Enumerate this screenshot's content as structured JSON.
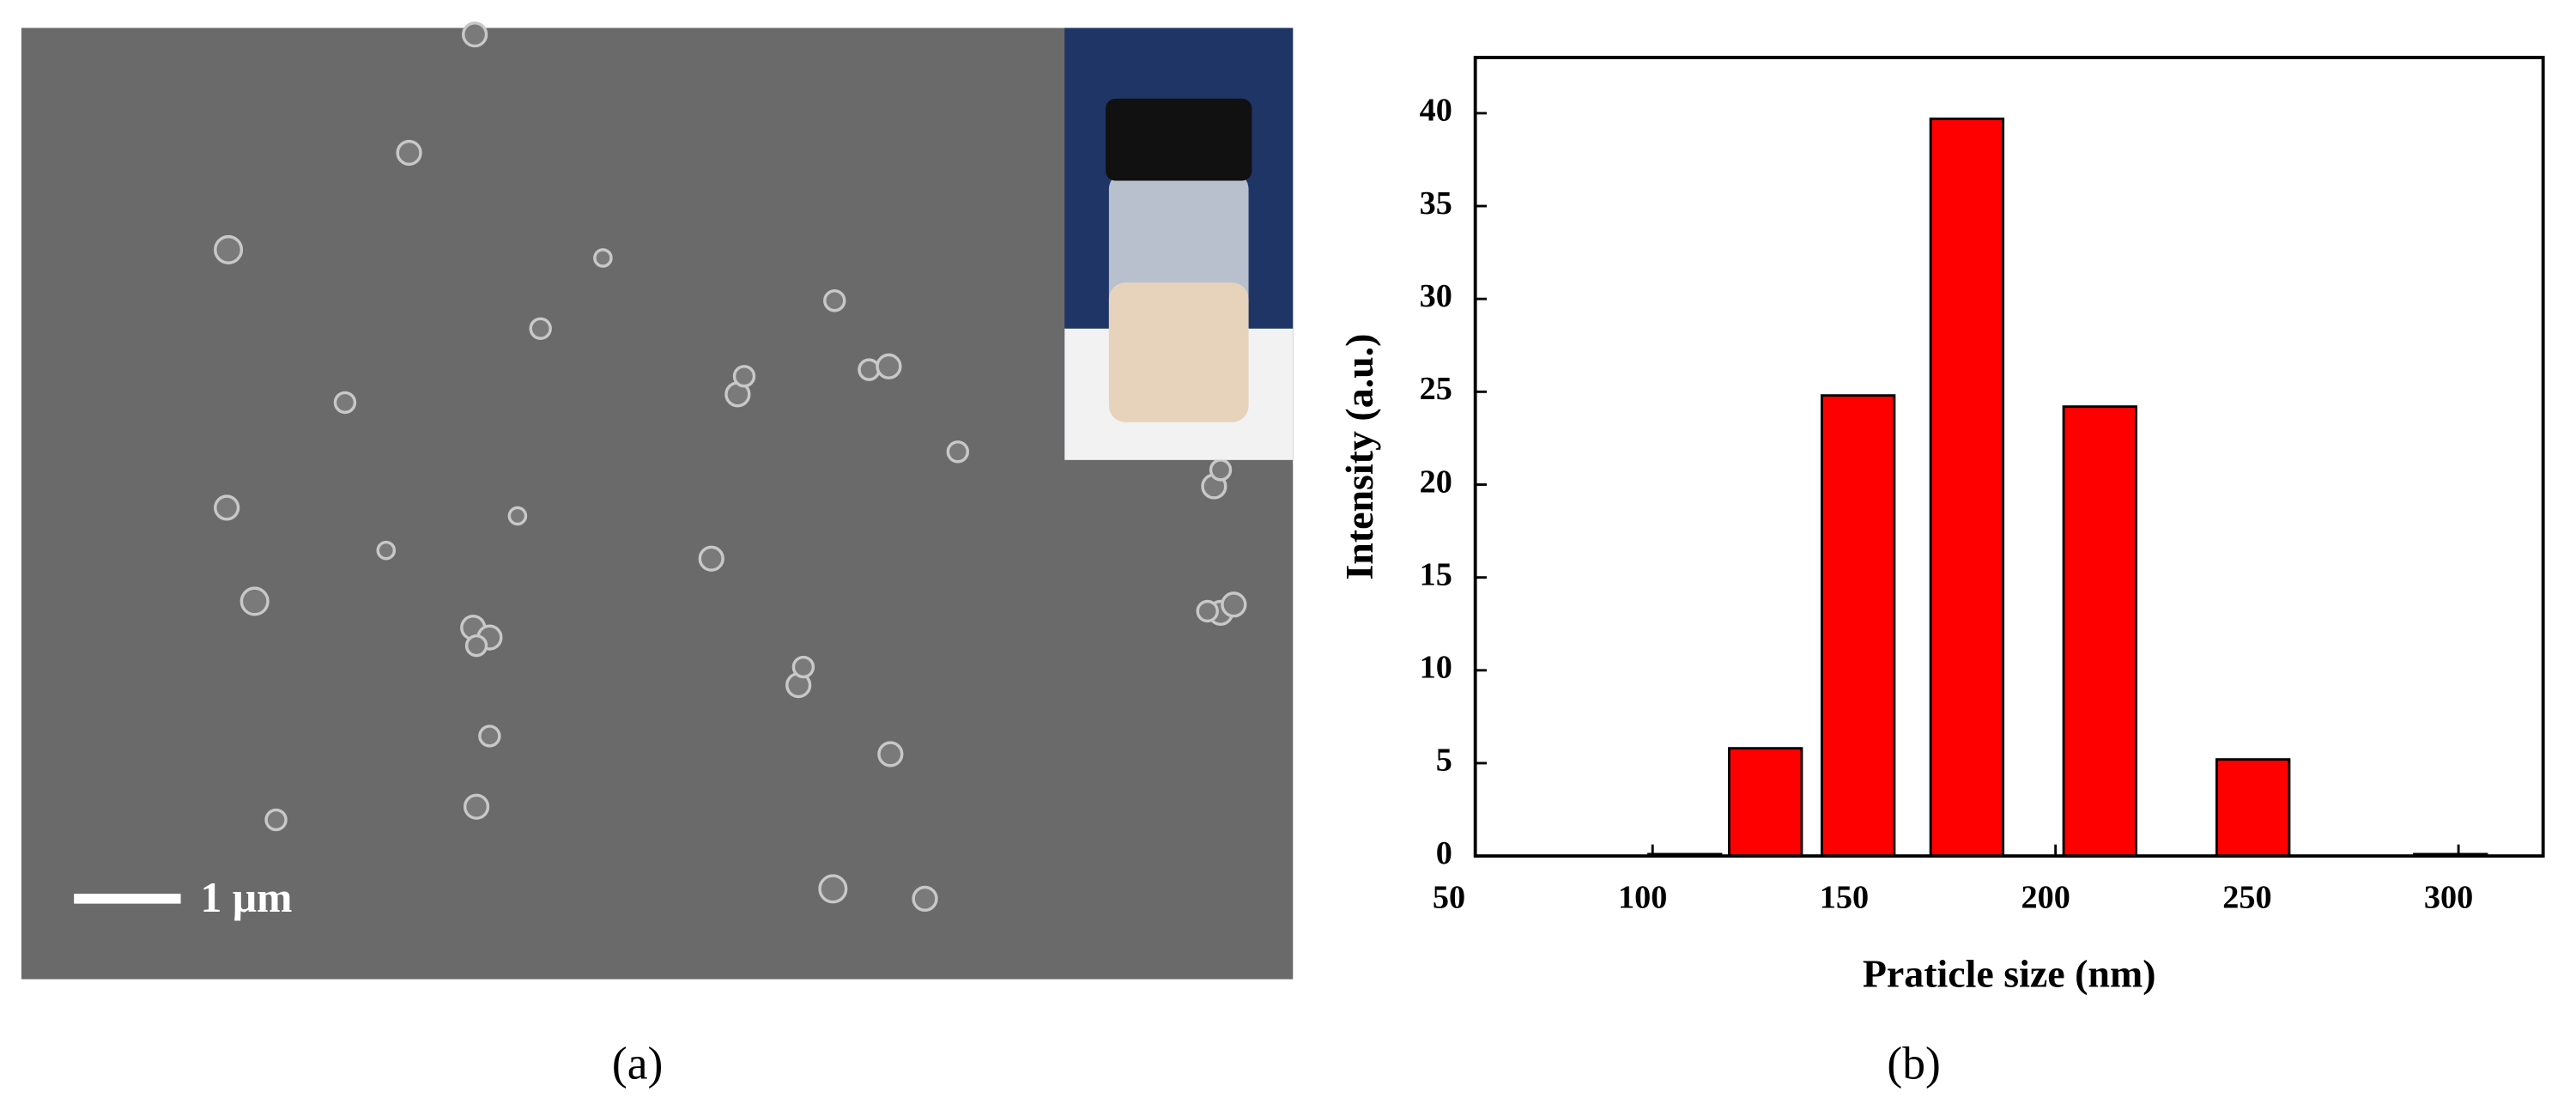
{
  "panel_labels": [
    "(a)",
    "(b)"
  ],
  "scale_bar": "1 μm",
  "chart_data": {
    "type": "bar",
    "xlabel": "Praticle size (nm)",
    "ylabel": "Intensity (a.u.)",
    "x": [
      108,
      128,
      151,
      178,
      211,
      249,
      298
    ],
    "values": [
      0.1,
      5.8,
      24.8,
      39.7,
      24.2,
      5.2,
      0.1
    ],
    "color": "#ff0000",
    "edgecolor": "#000000",
    "xlim": [
      56,
      321
    ],
    "ylim": [
      0,
      43
    ],
    "xticks": [
      50,
      100,
      150,
      200,
      250,
      300
    ],
    "yticks": [
      0,
      5,
      10,
      15,
      20,
      25,
      30,
      35,
      40
    ]
  }
}
